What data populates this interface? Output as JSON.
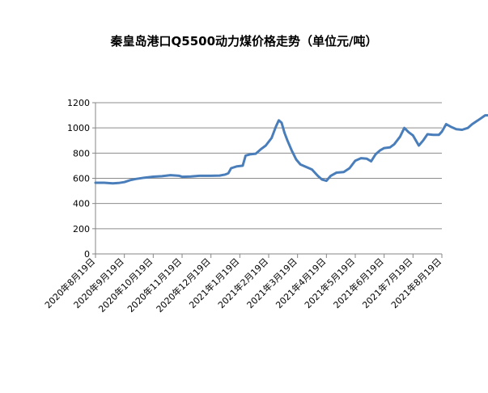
{
  "chart_data": {
    "type": "line",
    "title": "秦皇岛港口Q5500动力煤价格走势（单位元/吨）",
    "xlabel": "",
    "ylabel": "",
    "ylim": [
      0,
      1200
    ],
    "yticks": [
      0,
      200,
      400,
      600,
      800,
      1000,
      1200
    ],
    "x_tick_labels": [
      "2020年8月19日",
      "2020年9月19日",
      "2020年10月19日",
      "2020年11月19日",
      "2020年12月19日",
      "2021年1月19日",
      "2021年2月19日",
      "2021年3月19日",
      "2021年4月19日",
      "2021年5月19日",
      "2021年6月19日",
      "2021年7月19日",
      "2021年8月19日"
    ],
    "grid": true,
    "legend": "none",
    "series_color": "#4a7ebb",
    "series": [
      {
        "values": [
          [
            0,
            565
          ],
          [
            0.3,
            565
          ],
          [
            0.6,
            560
          ],
          [
            0.8,
            563
          ],
          [
            1.0,
            570
          ],
          [
            1.2,
            585
          ],
          [
            1.4,
            595
          ],
          [
            1.7,
            605
          ],
          [
            2.0,
            613
          ],
          [
            2.3,
            617
          ],
          [
            2.6,
            625
          ],
          [
            2.9,
            620
          ],
          [
            3.0,
            612
          ],
          [
            3.3,
            615
          ],
          [
            3.6,
            620
          ],
          [
            4.0,
            620
          ],
          [
            4.3,
            622
          ],
          [
            4.5,
            630
          ],
          [
            4.6,
            640
          ],
          [
            4.7,
            680
          ],
          [
            4.9,
            695
          ],
          [
            5.1,
            700
          ],
          [
            5.2,
            780
          ],
          [
            5.35,
            790
          ],
          [
            5.55,
            795
          ],
          [
            5.75,
            835
          ],
          [
            5.9,
            860
          ],
          [
            6.1,
            920
          ],
          [
            6.25,
            1010
          ],
          [
            6.35,
            1060
          ],
          [
            6.45,
            1040
          ],
          [
            6.55,
            960
          ],
          [
            6.65,
            900
          ],
          [
            6.8,
            820
          ],
          [
            6.95,
            750
          ],
          [
            7.1,
            710
          ],
          [
            7.3,
            690
          ],
          [
            7.5,
            670
          ],
          [
            7.7,
            620
          ],
          [
            7.85,
            590
          ],
          [
            8.0,
            580
          ],
          [
            8.15,
            620
          ],
          [
            8.35,
            645
          ],
          [
            8.6,
            650
          ],
          [
            8.8,
            680
          ],
          [
            9.0,
            740
          ],
          [
            9.2,
            760
          ],
          [
            9.4,
            755
          ],
          [
            9.55,
            735
          ],
          [
            9.7,
            790
          ],
          [
            9.85,
            820
          ],
          [
            10.0,
            840
          ],
          [
            10.2,
            845
          ],
          [
            10.35,
            870
          ],
          [
            10.55,
            930
          ],
          [
            10.7,
            1000
          ],
          [
            10.85,
            965
          ],
          [
            11.0,
            940
          ],
          [
            11.1,
            900
          ],
          [
            11.2,
            860
          ],
          [
            11.35,
            900
          ],
          [
            11.5,
            950
          ],
          [
            11.7,
            945
          ],
          [
            11.9,
            945
          ],
          [
            12.0,
            970
          ],
          [
            12.15,
            1030
          ],
          [
            12.3,
            1010
          ],
          [
            12.5,
            990
          ],
          [
            12.7,
            985
          ],
          [
            12.9,
            1000
          ],
          [
            13.05,
            1030
          ],
          [
            13.25,
            1060
          ],
          [
            13.5,
            1100
          ],
          [
            13.75,
            1100
          ],
          [
            14.0,
            1095
          ],
          [
            14.2,
            1065
          ],
          [
            14.4,
            1060
          ],
          [
            14.5,
            1045
          ]
        ]
      }
    ]
  }
}
